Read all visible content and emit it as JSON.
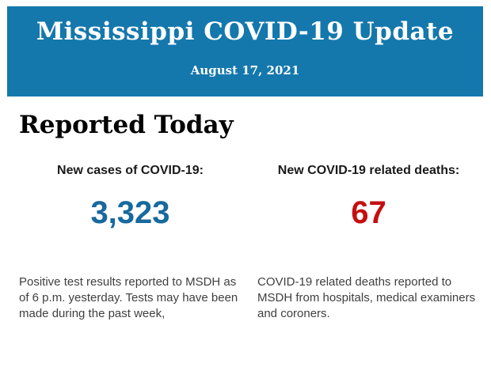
{
  "header": {
    "title": "Mississippi COVID-19 Update",
    "date": "August 17, 2021",
    "background_color": "#1478ad",
    "text_color": "#ffffff"
  },
  "section": {
    "title": "Reported Today"
  },
  "stats": [
    {
      "label": "New cases of COVID-19:",
      "value": "3,323",
      "value_color": "#17699e",
      "description": "Positive test results reported to MSDH as of 6 p.m. yesterday. Tests may have been made during the past week,"
    },
    {
      "label": "New COVID-19 related deaths:",
      "value": "67",
      "value_color": "#c40f11",
      "description": "COVID-19 related deaths reported to MSDH from hospitals, medical examiners and coroners."
    }
  ]
}
